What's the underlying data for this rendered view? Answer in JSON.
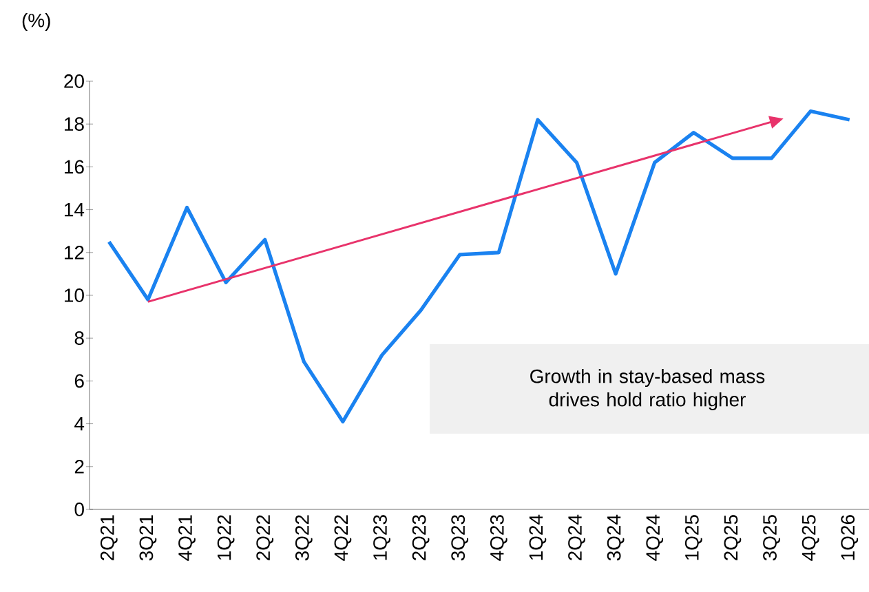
{
  "chart_data": {
    "type": "line",
    "ylabel": "(%)",
    "categories": [
      "2Q21",
      "3Q21",
      "4Q21",
      "1Q22",
      "2Q22",
      "3Q22",
      "4Q22",
      "1Q23",
      "2Q23",
      "3Q23",
      "4Q23",
      "1Q24",
      "2Q24",
      "3Q24",
      "4Q24",
      "1Q25",
      "2Q25",
      "3Q25",
      "4Q25",
      "1Q26"
    ],
    "series": [
      {
        "color": "#1a82f0",
        "values": [
          12.5,
          9.8,
          14.1,
          10.6,
          12.6,
          6.9,
          4.1,
          7.2,
          9.3,
          11.9,
          12.0,
          18.2,
          16.2,
          11.0,
          16.2,
          17.6,
          16.4,
          16.4,
          18.6,
          18.2
        ]
      },
      {
        "type": "line",
        "color": "#e8336b",
        "values": [
          null,
          9.7,
          null,
          null,
          null,
          null,
          null,
          null,
          null,
          null,
          null,
          null,
          null,
          null,
          null,
          null,
          null,
          18.1,
          null,
          null
        ]
      }
    ],
    "ylim": [
      0,
      20
    ],
    "yticks": [
      0,
      2,
      4,
      6,
      8,
      10,
      12,
      14,
      16,
      18,
      20
    ],
    "grid": false,
    "annotations": [
      "Growth in stay-based mass drives hold ratio higher"
    ]
  }
}
